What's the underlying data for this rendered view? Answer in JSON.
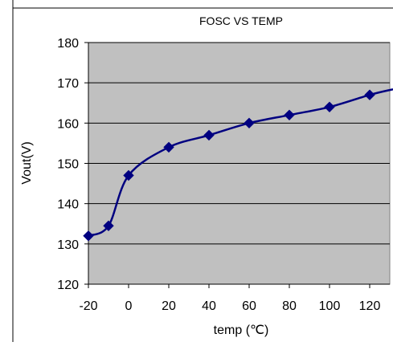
{
  "chart_data": {
    "type": "line",
    "title": "FOSC VS TEMP",
    "xlabel": "temp (℃)",
    "ylabel": "Vout(V)",
    "xlim": [
      -20,
      130
    ],
    "ylim": [
      120,
      180
    ],
    "xticks": [
      "-20",
      "0",
      "20",
      "40",
      "60",
      "80",
      "100",
      "120"
    ],
    "yticks": [
      "120",
      "130",
      "140",
      "150",
      "160",
      "170",
      "180"
    ],
    "grid": true,
    "legend": "none",
    "plot_background": "#c0c0c0",
    "line_color": "#000080",
    "marker_color": "#000080",
    "series": [
      {
        "x": [
          -20,
          -10,
          0,
          20,
          40,
          60,
          80,
          100,
          120
        ],
        "y": [
          132,
          134.5,
          147,
          154,
          157,
          160,
          162,
          164,
          167
        ]
      }
    ]
  }
}
